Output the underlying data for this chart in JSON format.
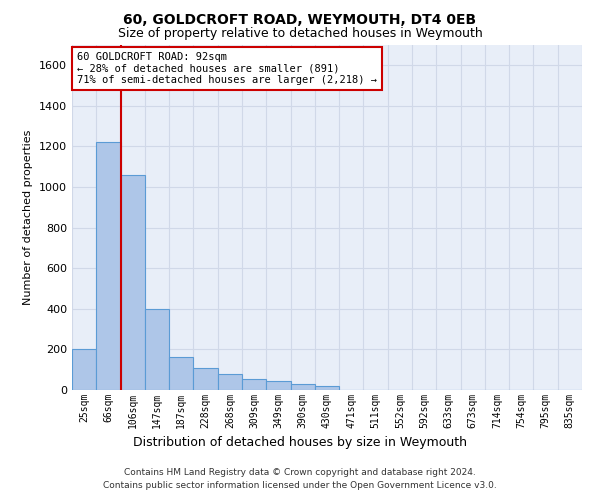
{
  "title1": "60, GOLDCROFT ROAD, WEYMOUTH, DT4 0EB",
  "title2": "Size of property relative to detached houses in Weymouth",
  "xlabel": "Distribution of detached houses by size in Weymouth",
  "ylabel": "Number of detached properties",
  "categories": [
    "25sqm",
    "66sqm",
    "106sqm",
    "147sqm",
    "187sqm",
    "228sqm",
    "268sqm",
    "309sqm",
    "349sqm",
    "390sqm",
    "430sqm",
    "471sqm",
    "511sqm",
    "552sqm",
    "592sqm",
    "633sqm",
    "673sqm",
    "714sqm",
    "754sqm",
    "795sqm",
    "835sqm"
  ],
  "values": [
    200,
    1220,
    1060,
    400,
    163,
    110,
    80,
    55,
    45,
    28,
    18,
    0,
    0,
    0,
    0,
    0,
    0,
    0,
    0,
    0,
    0
  ],
  "bar_color": "#aec6e8",
  "bar_edge_color": "#5b9bd5",
  "property_line_x": 1.5,
  "annotation_text": "60 GOLDCROFT ROAD: 92sqm\n← 28% of detached houses are smaller (891)\n71% of semi-detached houses are larger (2,218) →",
  "annotation_box_color": "#ffffff",
  "annotation_box_edge": "#cc0000",
  "property_line_color": "#cc0000",
  "ylim": [
    0,
    1700
  ],
  "yticks": [
    0,
    200,
    400,
    600,
    800,
    1000,
    1200,
    1400,
    1600
  ],
  "grid_color": "#d0d8e8",
  "background_color": "#e8eef8",
  "footer1": "Contains HM Land Registry data © Crown copyright and database right 2024.",
  "footer2": "Contains public sector information licensed under the Open Government Licence v3.0."
}
